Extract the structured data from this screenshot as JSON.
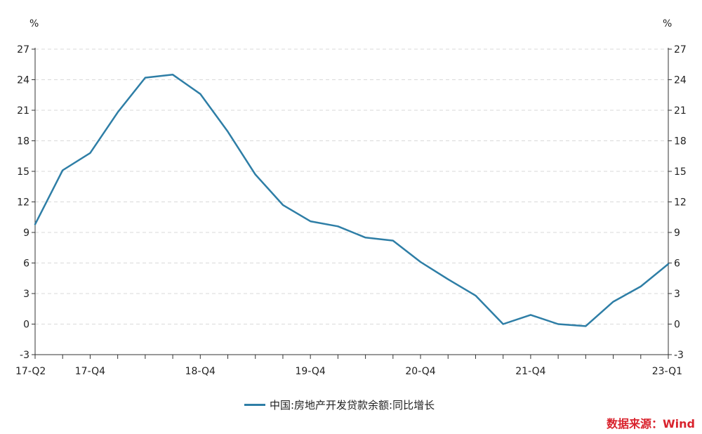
{
  "chart_data": {
    "type": "line",
    "y_unit_left": "%",
    "y_unit_right": "%",
    "ylim": [
      -3,
      27
    ],
    "yticks": [
      -3,
      0,
      3,
      6,
      9,
      12,
      15,
      18,
      21,
      24,
      27
    ],
    "grid": true,
    "x": [
      "17-Q2",
      "17-Q3",
      "17-Q4",
      "18-Q1",
      "18-Q2",
      "18-Q3",
      "18-Q4",
      "19-Q1",
      "19-Q2",
      "19-Q3",
      "19-Q4",
      "20-Q1",
      "20-Q2",
      "20-Q3",
      "20-Q4",
      "21-Q1",
      "21-Q2",
      "21-Q3",
      "21-Q4",
      "22-Q1",
      "22-Q2",
      "22-Q3",
      "22-Q4",
      "23-Q1"
    ],
    "xtick_labels": [
      "17-Q2",
      "17-Q4",
      "18-Q4",
      "19-Q4",
      "20-Q4",
      "21-Q4",
      "23-Q1"
    ],
    "series": [
      {
        "name": "中国:房地产开发贷款余额:同比增长",
        "color": "#2e7ea6",
        "values": [
          9.8,
          15.1,
          16.8,
          20.8,
          24.2,
          24.5,
          22.6,
          18.9,
          14.7,
          11.7,
          10.1,
          9.6,
          8.5,
          8.2,
          6.1,
          4.4,
          2.8,
          0.0,
          0.9,
          0.0,
          -0.2,
          2.2,
          3.7,
          5.9
        ]
      }
    ],
    "legend_position": "bottom-center"
  },
  "source_text": "数据来源：Wind"
}
